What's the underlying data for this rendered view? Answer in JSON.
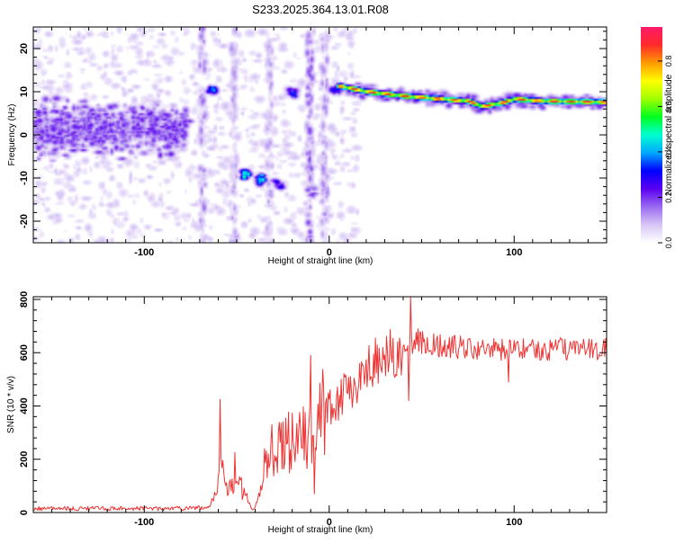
{
  "title": "S233.2025.364.13.01.R08",
  "colors": {
    "snr_line": "#ee3333",
    "bg": "#ffffff",
    "colormap": [
      "#ffffff",
      "#d8c6f6",
      "#9a6af0",
      "#5a00f0",
      "#0000ff",
      "#00a8ff",
      "#00ffd0",
      "#00ff20",
      "#a0ff00",
      "#ffff00",
      "#ff9a00",
      "#ff2a2a",
      "#ff1a6a"
    ]
  },
  "chart_data": [
    {
      "id": "spectrogram",
      "type": "heatmap",
      "xlabel": "Height of straight line (km)",
      "ylabel": "Frequency (Hz)",
      "xlim": [
        -160,
        150
      ],
      "ylim": [
        -25,
        25
      ],
      "xticks": [
        -100,
        0,
        100
      ],
      "yticks": [
        -20,
        -10,
        0,
        10,
        20
      ],
      "xtick_labels": [
        "-100",
        "0",
        "100"
      ],
      "ytick_labels": [
        "-20",
        "-10",
        "0",
        "10",
        "20"
      ],
      "colorbar": {
        "label": "Normalized spectral amplitude",
        "range": [
          0,
          0.95
        ],
        "ticks": [
          0.0,
          0.2,
          0.4,
          0.6,
          0.8
        ],
        "tick_labels": [
          "0.0",
          "0.2",
          "0.4",
          "0.6",
          "0.8"
        ]
      },
      "features": {
        "noise_band": {
          "x_range": [
            -160,
            -78
          ],
          "freq_center": 1.5,
          "freq_halfwidth": 4,
          "amplitude": 0.18
        },
        "streaks": [
          {
            "x": -69,
            "amplitude": 0.15
          },
          {
            "x": -52,
            "amplitude": 0.12
          },
          {
            "x": -33,
            "amplitude": 0.12
          },
          {
            "x": -11,
            "amplitude": 0.18
          },
          {
            "x": -3,
            "amplitude": 0.14
          }
        ],
        "blobs": [
          {
            "x": -64,
            "f": 10.5,
            "amplitude": 0.45
          },
          {
            "x": -78,
            "f": 4,
            "amplitude": 0.25
          },
          {
            "x": -46,
            "f": -9,
            "amplitude": 0.55
          },
          {
            "x": -38,
            "f": -10,
            "amplitude": 0.6
          },
          {
            "x": -28,
            "f": -11,
            "amplitude": 0.35
          },
          {
            "x": -20,
            "f": 10,
            "amplitude": 0.4
          },
          {
            "x": -10,
            "f": -13,
            "amplitude": 0.2
          },
          {
            "x": 3,
            "f": 11,
            "amplitude": 0.4
          }
        ],
        "carrier": {
          "points": [
            {
              "x": 5,
              "f": 11.5
            },
            {
              "x": 20,
              "f": 10.2
            },
            {
              "x": 40,
              "f": 9.2
            },
            {
              "x": 60,
              "f": 8.5
            },
            {
              "x": 75,
              "f": 8.0
            },
            {
              "x": 82,
              "f": 6.8
            },
            {
              "x": 92,
              "f": 7.5
            },
            {
              "x": 100,
              "f": 8.5
            },
            {
              "x": 115,
              "f": 8.0
            },
            {
              "x": 150,
              "f": 7.8
            }
          ],
          "amplitude": 0.92
        }
      }
    },
    {
      "id": "snr",
      "type": "line",
      "xlabel": "Height of straight line (km)",
      "ylabel": "SNR (10 * v/v)",
      "xlim": [
        -160,
        150
      ],
      "ylim": [
        0,
        810
      ],
      "xticks": [
        -100,
        0,
        100
      ],
      "yticks": [
        0,
        200,
        400,
        600,
        800
      ],
      "xtick_labels": [
        "-100",
        "0",
        "100"
      ],
      "ytick_labels": [
        "0",
        "200",
        "400",
        "600",
        "800"
      ],
      "series": [
        {
          "name": "SNR",
          "x": [
            -160,
            -120,
            -80,
            -65,
            -62,
            -60,
            -58,
            -55,
            -52,
            -48,
            -45,
            -42,
            -40,
            -35,
            -30,
            -25,
            -20,
            -15,
            -10,
            -5,
            0,
            5,
            10,
            15,
            20,
            25,
            30,
            35,
            40,
            44,
            48,
            55,
            70,
            90,
            110,
            130,
            150
          ],
          "y": [
            15,
            15,
            15,
            20,
            60,
            140,
            160,
            110,
            90,
            100,
            60,
            10,
            20,
            150,
            200,
            260,
            270,
            280,
            290,
            360,
            400,
            420,
            460,
            500,
            540,
            570,
            590,
            600,
            610,
            630,
            640,
            630,
            620,
            610,
            610,
            615,
            612
          ]
        }
      ],
      "spikes": [
        {
          "x": -59,
          "y": 425
        },
        {
          "x": -51,
          "y": 225
        },
        {
          "x": -35,
          "y": 240
        },
        {
          "x": -31,
          "y": 330
        },
        {
          "x": -10,
          "y": 590
        },
        {
          "x": -8,
          "y": 70
        },
        {
          "x": 44,
          "y": 810
        },
        {
          "x": 43,
          "y": 420
        },
        {
          "x": 48,
          "y": 690
        },
        {
          "x": 97,
          "y": 490
        }
      ]
    }
  ]
}
